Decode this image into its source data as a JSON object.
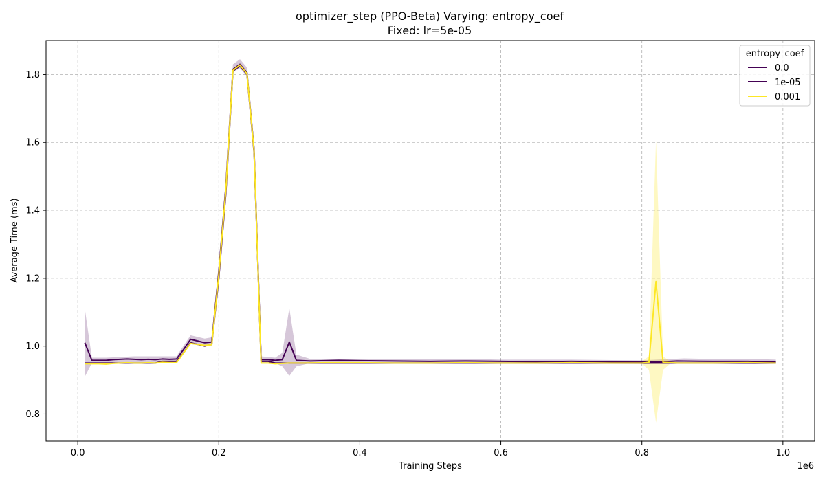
{
  "chart_data": {
    "type": "line",
    "title": "optimizer_step (PPO-Beta) Varying: entropy_coef",
    "subtitle": "Fixed: lr=5e-05",
    "xlabel": "Training Steps",
    "ylabel": "Average Time (ms)",
    "x_offset_label": "1e6",
    "xlim": [
      -0.045,
      1.045
    ],
    "ylim": [
      0.72,
      1.9
    ],
    "x_ticks": [
      0.0,
      0.2,
      0.4,
      0.6,
      0.8,
      1.0
    ],
    "x_tick_labels": [
      "0.0",
      "0.2",
      "0.4",
      "0.6",
      "0.8",
      "1.0"
    ],
    "y_ticks": [
      0.8,
      1.0,
      1.2,
      1.4,
      1.6,
      1.8
    ],
    "y_tick_labels": [
      "0.8",
      "1.0",
      "1.2",
      "1.4",
      "1.6",
      "1.8"
    ],
    "grid": true,
    "legend": {
      "title": "entropy_coef",
      "position": "top-right"
    },
    "series": [
      {
        "name": "0.0",
        "color": "#440154",
        "points": [
          [
            0.01,
            0.95
          ],
          [
            0.02,
            0.95
          ],
          [
            0.03,
            0.95
          ],
          [
            0.04,
            0.95
          ],
          [
            0.05,
            0.95
          ],
          [
            0.06,
            0.95
          ],
          [
            0.07,
            0.95
          ],
          [
            0.08,
            0.95
          ],
          [
            0.09,
            0.95
          ],
          [
            0.1,
            0.95
          ],
          [
            0.11,
            0.95
          ],
          [
            0.12,
            0.955
          ],
          [
            0.13,
            0.955
          ],
          [
            0.14,
            0.955
          ],
          [
            0.15,
            0.98
          ],
          [
            0.16,
            1.01
          ],
          [
            0.17,
            1.005
          ],
          [
            0.18,
            1.0
          ],
          [
            0.19,
            1.005
          ],
          [
            0.2,
            1.2
          ],
          [
            0.21,
            1.45
          ],
          [
            0.22,
            1.81
          ],
          [
            0.23,
            1.825
          ],
          [
            0.24,
            1.8
          ],
          [
            0.25,
            1.57
          ],
          [
            0.26,
            0.955
          ],
          [
            0.27,
            0.955
          ],
          [
            0.28,
            0.95
          ],
          [
            0.29,
            0.95
          ],
          [
            0.3,
            0.95
          ],
          [
            0.32,
            0.95
          ],
          [
            0.35,
            0.95
          ],
          [
            0.4,
            0.95
          ],
          [
            0.45,
            0.95
          ],
          [
            0.5,
            0.95
          ],
          [
            0.55,
            0.95
          ],
          [
            0.6,
            0.95
          ],
          [
            0.65,
            0.95
          ],
          [
            0.7,
            0.95
          ],
          [
            0.75,
            0.95
          ],
          [
            0.8,
            0.95
          ],
          [
            0.81,
            0.95
          ],
          [
            0.82,
            0.95
          ],
          [
            0.83,
            0.95
          ],
          [
            0.85,
            0.95
          ],
          [
            0.9,
            0.95
          ],
          [
            0.95,
            0.95
          ],
          [
            0.99,
            0.95
          ]
        ]
      },
      {
        "name": "1e-05",
        "color": "#440154",
        "points": [
          [
            0.01,
            1.01
          ],
          [
            0.02,
            0.958
          ],
          [
            0.03,
            0.958
          ],
          [
            0.04,
            0.958
          ],
          [
            0.05,
            0.96
          ],
          [
            0.06,
            0.961
          ],
          [
            0.07,
            0.962
          ],
          [
            0.08,
            0.961
          ],
          [
            0.09,
            0.96
          ],
          [
            0.1,
            0.961
          ],
          [
            0.11,
            0.96
          ],
          [
            0.12,
            0.962
          ],
          [
            0.13,
            0.961
          ],
          [
            0.14,
            0.962
          ],
          [
            0.15,
            0.99
          ],
          [
            0.16,
            1.02
          ],
          [
            0.17,
            1.015
          ],
          [
            0.18,
            1.01
          ],
          [
            0.19,
            1.012
          ],
          [
            0.2,
            1.22
          ],
          [
            0.21,
            1.47
          ],
          [
            0.22,
            1.815
          ],
          [
            0.23,
            1.83
          ],
          [
            0.24,
            1.805
          ],
          [
            0.25,
            1.58
          ],
          [
            0.26,
            0.96
          ],
          [
            0.27,
            0.96
          ],
          [
            0.28,
            0.958
          ],
          [
            0.29,
            0.96
          ],
          [
            0.3,
            1.012
          ],
          [
            0.31,
            0.958
          ],
          [
            0.33,
            0.956
          ],
          [
            0.35,
            0.957
          ],
          [
            0.37,
            0.958
          ],
          [
            0.4,
            0.957
          ],
          [
            0.45,
            0.956
          ],
          [
            0.5,
            0.955
          ],
          [
            0.55,
            0.956
          ],
          [
            0.6,
            0.955
          ],
          [
            0.65,
            0.954
          ],
          [
            0.7,
            0.955
          ],
          [
            0.75,
            0.954
          ],
          [
            0.8,
            0.953
          ],
          [
            0.82,
            0.953
          ],
          [
            0.85,
            0.956
          ],
          [
            0.9,
            0.955
          ],
          [
            0.95,
            0.955
          ],
          [
            0.99,
            0.953
          ]
        ]
      },
      {
        "name": "0.001",
        "color": "#fde725",
        "points": [
          [
            0.01,
            0.948
          ],
          [
            0.02,
            0.948
          ],
          [
            0.03,
            0.948
          ],
          [
            0.04,
            0.947
          ],
          [
            0.05,
            0.949
          ],
          [
            0.06,
            0.95
          ],
          [
            0.07,
            0.951
          ],
          [
            0.08,
            0.95
          ],
          [
            0.09,
            0.95
          ],
          [
            0.1,
            0.951
          ],
          [
            0.11,
            0.95
          ],
          [
            0.12,
            0.952
          ],
          [
            0.13,
            0.951
          ],
          [
            0.14,
            0.951
          ],
          [
            0.15,
            0.98
          ],
          [
            0.16,
            1.008
          ],
          [
            0.17,
            1.005
          ],
          [
            0.18,
            1.002
          ],
          [
            0.19,
            1.004
          ],
          [
            0.2,
            1.21
          ],
          [
            0.21,
            1.46
          ],
          [
            0.22,
            1.812
          ],
          [
            0.23,
            1.828
          ],
          [
            0.24,
            1.802
          ],
          [
            0.25,
            1.575
          ],
          [
            0.26,
            0.95
          ],
          [
            0.27,
            0.95
          ],
          [
            0.28,
            0.948
          ],
          [
            0.29,
            0.949
          ],
          [
            0.3,
            0.95
          ],
          [
            0.32,
            0.95
          ],
          [
            0.35,
            0.951
          ],
          [
            0.4,
            0.951
          ],
          [
            0.45,
            0.95
          ],
          [
            0.5,
            0.95
          ],
          [
            0.55,
            0.951
          ],
          [
            0.6,
            0.95
          ],
          [
            0.65,
            0.95
          ],
          [
            0.7,
            0.951
          ],
          [
            0.75,
            0.95
          ],
          [
            0.8,
            0.95
          ],
          [
            0.81,
            0.952
          ],
          [
            0.82,
            1.19
          ],
          [
            0.83,
            0.952
          ],
          [
            0.85,
            0.95
          ],
          [
            0.9,
            0.95
          ],
          [
            0.95,
            0.951
          ],
          [
            0.99,
            0.95
          ]
        ]
      }
    ],
    "bands": [
      {
        "series": "1e-05",
        "color": "#440154",
        "opacity": 0.22,
        "points": [
          [
            0.01,
            0.91,
            1.11
          ],
          [
            0.02,
            0.95,
            0.966
          ],
          [
            0.04,
            0.95,
            0.966
          ],
          [
            0.06,
            0.952,
            0.968
          ],
          [
            0.08,
            0.952,
            0.97
          ],
          [
            0.1,
            0.952,
            0.97
          ],
          [
            0.12,
            0.953,
            0.97
          ],
          [
            0.14,
            0.953,
            0.97
          ],
          [
            0.16,
            1.01,
            1.032
          ],
          [
            0.18,
            1.0,
            1.022
          ],
          [
            0.19,
            1.0,
            1.026
          ],
          [
            0.2,
            1.2,
            1.24
          ],
          [
            0.21,
            1.45,
            1.49
          ],
          [
            0.22,
            1.808,
            1.83
          ],
          [
            0.23,
            1.818,
            1.845
          ],
          [
            0.24,
            1.795,
            1.82
          ],
          [
            0.25,
            1.56,
            1.6
          ],
          [
            0.26,
            0.95,
            0.97
          ],
          [
            0.28,
            0.95,
            0.966
          ],
          [
            0.29,
            0.94,
            0.98
          ],
          [
            0.3,
            0.912,
            1.112
          ],
          [
            0.31,
            0.94,
            0.975
          ],
          [
            0.33,
            0.95,
            0.962
          ],
          [
            0.4,
            0.95,
            0.962
          ],
          [
            0.5,
            0.95,
            0.961
          ],
          [
            0.56,
            0.948,
            0.962
          ],
          [
            0.6,
            0.948,
            0.96
          ],
          [
            0.7,
            0.948,
            0.96
          ],
          [
            0.8,
            0.947,
            0.958
          ],
          [
            0.86,
            0.948,
            0.964
          ],
          [
            0.9,
            0.948,
            0.962
          ],
          [
            0.96,
            0.947,
            0.962
          ],
          [
            0.99,
            0.948,
            0.96
          ]
        ]
      },
      {
        "series": "0.001",
        "color": "#fde725",
        "opacity": 0.28,
        "points": [
          [
            0.79,
            0.948,
            0.953
          ],
          [
            0.8,
            0.948,
            0.955
          ],
          [
            0.81,
            0.93,
            0.97
          ],
          [
            0.82,
            0.775,
            1.605
          ],
          [
            0.83,
            0.93,
            0.97
          ],
          [
            0.84,
            0.948,
            0.955
          ],
          [
            0.85,
            0.948,
            0.953
          ]
        ]
      }
    ]
  }
}
